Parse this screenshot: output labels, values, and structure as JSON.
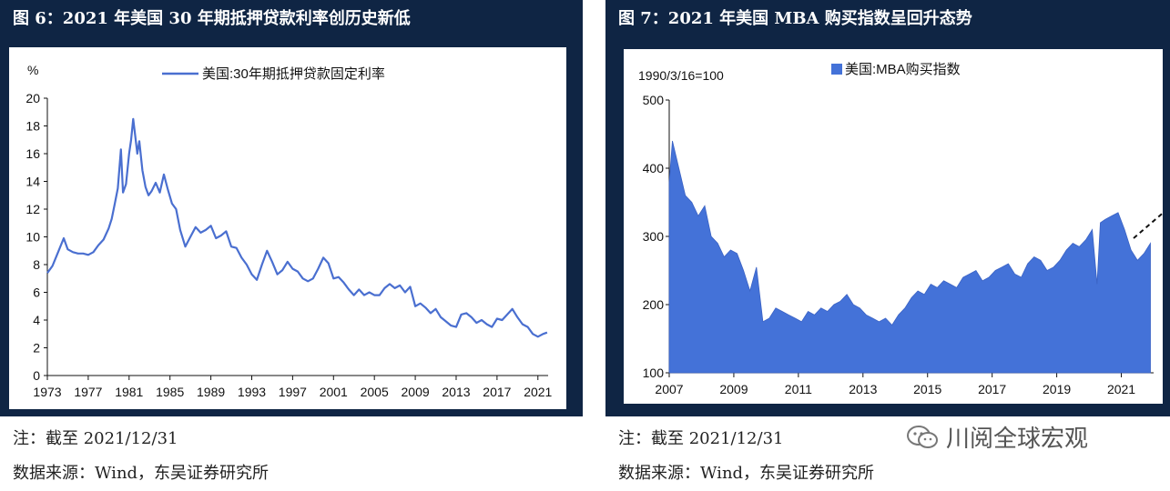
{
  "fig6": {
    "title": "图 6：2021 年美国 30 年期抵押贷款利率创历史新低",
    "note": "注：截至 2021/12/31",
    "source": "数据来源：Wind，东吴证券研究所",
    "chart_data": {
      "type": "line",
      "ylabel": "%",
      "ylim": [
        0,
        20
      ],
      "yticks": [
        "0",
        "2",
        "4",
        "6",
        "8",
        "10",
        "12",
        "14",
        "16",
        "18",
        "20"
      ],
      "xlim": [
        1973,
        2022
      ],
      "xticks": [
        "1973",
        "1977",
        "1981",
        "1985",
        "1989",
        "1993",
        "1997",
        "2001",
        "2005",
        "2009",
        "2013",
        "2017",
        "2021"
      ],
      "legend": "top-center",
      "grid": false,
      "color": "#4a6fd0",
      "series": [
        {
          "name": "美国:30年期抵押贷款固定利率",
          "x": [
            1973,
            1973.5,
            1974,
            1974.6,
            1975,
            1975.5,
            1976,
            1976.5,
            1977,
            1977.5,
            1978,
            1978.5,
            1979,
            1979.3,
            1979.6,
            1979.9,
            1980.2,
            1980.4,
            1980.7,
            1981,
            1981.2,
            1981.4,
            1981.6,
            1981.8,
            1982,
            1982.3,
            1982.6,
            1982.9,
            1983.2,
            1983.6,
            1984,
            1984.4,
            1984.8,
            1985.2,
            1985.6,
            1986,
            1986.5,
            1987,
            1987.5,
            1988,
            1988.5,
            1989,
            1989.5,
            1990,
            1990.5,
            1991,
            1991.5,
            1992,
            1992.5,
            1993,
            1993.5,
            1994,
            1994.5,
            1995,
            1995.5,
            1996,
            1996.5,
            1997,
            1997.5,
            1998,
            1998.5,
            1999,
            1999.5,
            2000,
            2000.5,
            2001,
            2001.5,
            2002,
            2002.5,
            2003,
            2003.5,
            2004,
            2004.5,
            2005,
            2005.5,
            2006,
            2006.5,
            2007,
            2007.5,
            2008,
            2008.5,
            2009,
            2009.5,
            2010,
            2010.5,
            2011,
            2011.5,
            2012,
            2012.5,
            2013,
            2013.5,
            2014,
            2014.5,
            2015,
            2015.5,
            2016,
            2016.5,
            2017,
            2017.5,
            2018,
            2018.5,
            2019,
            2019.5,
            2020,
            2020.5,
            2021,
            2021.5,
            2021.9
          ],
          "y": [
            7.4,
            7.9,
            8.8,
            9.9,
            9.1,
            8.9,
            8.8,
            8.8,
            8.7,
            8.9,
            9.4,
            9.8,
            10.6,
            11.3,
            12.4,
            13.5,
            16.3,
            13.2,
            13.8,
            16.0,
            17.0,
            18.5,
            17.3,
            16.0,
            16.9,
            14.8,
            13.6,
            13.0,
            13.3,
            13.9,
            13.2,
            14.5,
            13.4,
            12.4,
            12.0,
            10.5,
            9.3,
            10.0,
            10.7,
            10.3,
            10.5,
            10.8,
            9.9,
            10.1,
            10.4,
            9.3,
            9.2,
            8.5,
            8.0,
            7.3,
            6.9,
            8.0,
            9.0,
            8.2,
            7.3,
            7.6,
            8.2,
            7.7,
            7.5,
            7.0,
            6.8,
            7.0,
            7.7,
            8.5,
            8.1,
            7.0,
            7.1,
            6.7,
            6.2,
            5.8,
            6.2,
            5.8,
            6.0,
            5.8,
            5.8,
            6.3,
            6.6,
            6.3,
            6.5,
            6.0,
            6.4,
            5.0,
            5.2,
            4.9,
            4.5,
            4.8,
            4.2,
            3.9,
            3.6,
            3.5,
            4.4,
            4.5,
            4.2,
            3.8,
            4.0,
            3.7,
            3.5,
            4.1,
            4.0,
            4.4,
            4.8,
            4.2,
            3.7,
            3.5,
            3.0,
            2.8,
            3.0,
            3.1
          ]
        }
      ]
    }
  },
  "fig7": {
    "title": "图 7：2021 年美国 MBA 购买指数呈回升态势",
    "note": "注：截至 2021/12/31",
    "source": "数据来源：Wind，东吴证券研究所",
    "chart_data": {
      "type": "area",
      "ylabel": "1990/3/16=100",
      "ylim": [
        100,
        500
      ],
      "yticks": [
        "100",
        "200",
        "300",
        "400",
        "500"
      ],
      "xlim": [
        2007,
        2022
      ],
      "xticks": [
        "2007",
        "2009",
        "2011",
        "2013",
        "2015",
        "2017",
        "2019",
        "2021"
      ],
      "legend": "top-center",
      "grid": false,
      "color": "#4472d8",
      "annotation": "dashed upward arrow",
      "series": [
        {
          "name": "美国:MBA购买指数",
          "x": [
            2007,
            2007.1,
            2007.3,
            2007.5,
            2007.7,
            2007.9,
            2008.1,
            2008.3,
            2008.5,
            2008.7,
            2008.9,
            2009.1,
            2009.3,
            2009.5,
            2009.7,
            2009.9,
            2010.1,
            2010.3,
            2010.5,
            2010.7,
            2010.9,
            2011.1,
            2011.3,
            2011.5,
            2011.7,
            2011.9,
            2012.1,
            2012.3,
            2012.5,
            2012.7,
            2012.9,
            2013.1,
            2013.3,
            2013.5,
            2013.7,
            2013.9,
            2014.1,
            2014.3,
            2014.5,
            2014.7,
            2014.9,
            2015.1,
            2015.3,
            2015.5,
            2015.7,
            2015.9,
            2016.1,
            2016.3,
            2016.5,
            2016.7,
            2016.9,
            2017.1,
            2017.3,
            2017.5,
            2017.7,
            2017.9,
            2018.1,
            2018.3,
            2018.5,
            2018.7,
            2018.9,
            2019.1,
            2019.3,
            2019.5,
            2019.7,
            2019.9,
            2020.1,
            2020.25,
            2020.35,
            2020.5,
            2020.7,
            2020.9,
            2021.1,
            2021.3,
            2021.5,
            2021.7,
            2021.9
          ],
          "y": [
            380,
            440,
            400,
            360,
            350,
            330,
            345,
            300,
            290,
            270,
            280,
            275,
            250,
            220,
            255,
            175,
            180,
            195,
            190,
            185,
            180,
            175,
            190,
            185,
            195,
            190,
            200,
            205,
            215,
            200,
            195,
            185,
            180,
            175,
            180,
            170,
            185,
            195,
            210,
            220,
            215,
            230,
            225,
            235,
            230,
            225,
            240,
            245,
            250,
            235,
            240,
            250,
            255,
            260,
            245,
            240,
            260,
            270,
            265,
            250,
            255,
            265,
            280,
            290,
            285,
            295,
            310,
            230,
            320,
            325,
            330,
            335,
            310,
            280,
            265,
            275,
            290
          ]
        }
      ]
    }
  },
  "watermark": "川阅全球宏观"
}
